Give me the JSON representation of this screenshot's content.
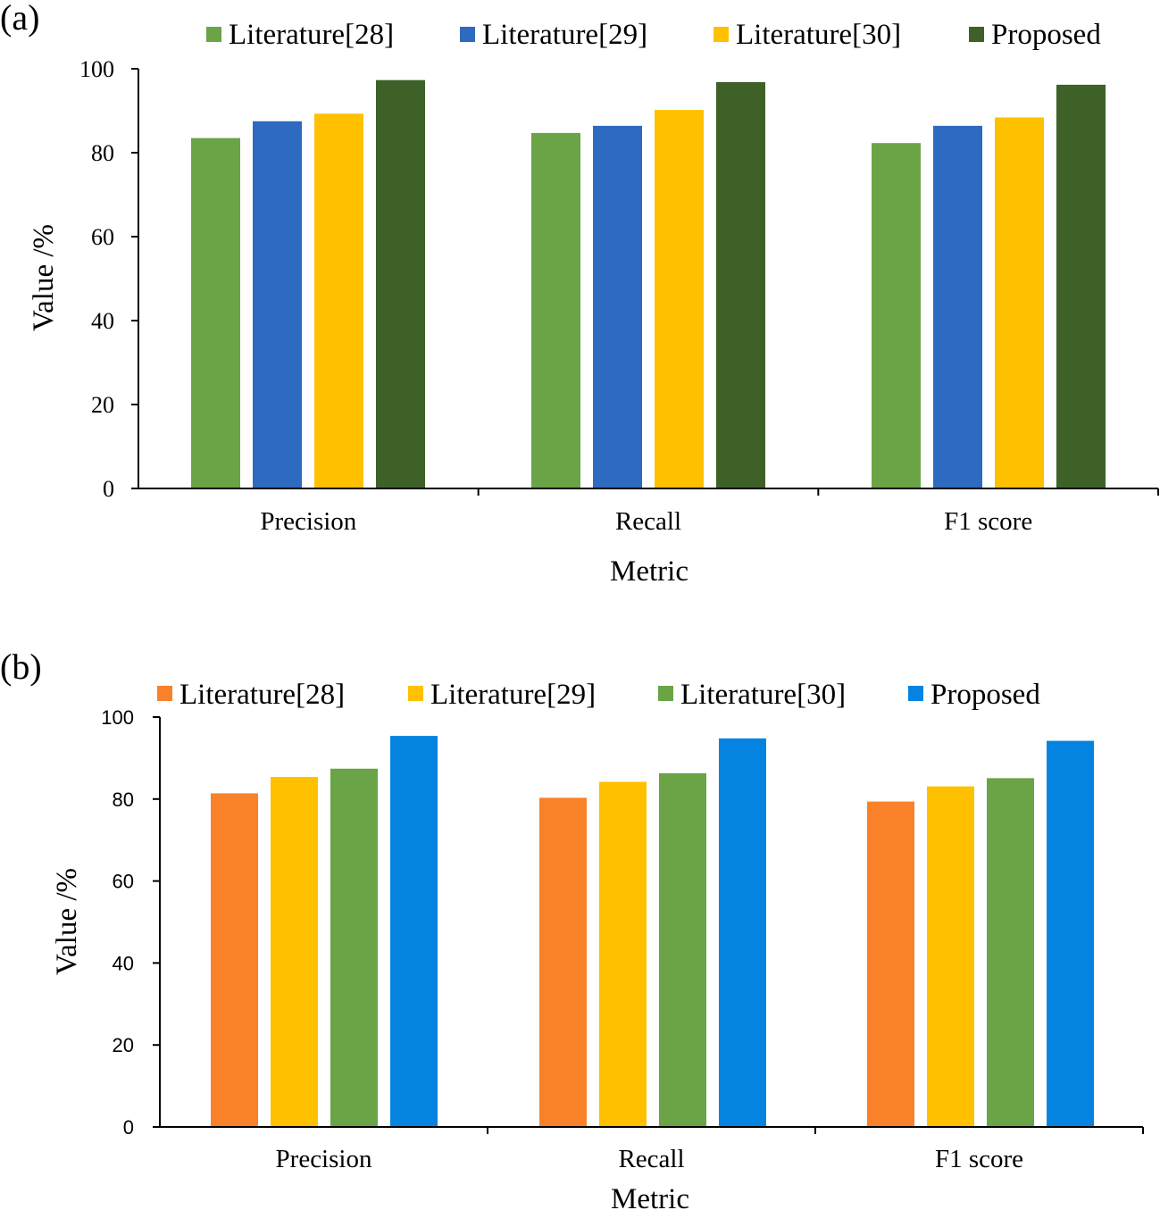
{
  "chart_data": [
    {
      "panel_label": "(a)",
      "type": "bar",
      "title": "",
      "xlabel": "Metric",
      "ylabel": "Value /%",
      "ylim": [
        0,
        100
      ],
      "yticks": [
        0,
        20,
        40,
        60,
        80,
        100
      ],
      "categories": [
        "Precision",
        "Recall",
        "F1 score"
      ],
      "series": [
        {
          "name": "Literature[28]",
          "color": "#6aa446",
          "values": [
            83.5,
            84.7,
            82.3
          ]
        },
        {
          "name": "Literature[29]",
          "color": "#2d6ac0",
          "values": [
            87.5,
            86.4,
            86.4
          ]
        },
        {
          "name": "Literature[30]",
          "color": "#ffc000",
          "values": [
            89.3,
            90.2,
            88.4
          ]
        },
        {
          "name": "Proposed",
          "color": "#3e6128",
          "values": [
            97.3,
            96.8,
            96.2
          ]
        }
      ],
      "legend": "top",
      "grid": false
    },
    {
      "panel_label": "(b)",
      "type": "bar",
      "title": "",
      "xlabel": "Metric",
      "ylabel": "Value /%",
      "ylim": [
        0,
        100
      ],
      "yticks": [
        0,
        20,
        40,
        60,
        80,
        100
      ],
      "categories": [
        "Precision",
        "Recall",
        "F1 score"
      ],
      "series": [
        {
          "name": "Literature[28]",
          "color": "#f8812a",
          "values": [
            81.4,
            80.3,
            79.4
          ]
        },
        {
          "name": "Literature[29]",
          "color": "#ffc000",
          "values": [
            85.4,
            84.2,
            83.1
          ]
        },
        {
          "name": "Literature[30]",
          "color": "#6aa446",
          "values": [
            87.4,
            86.3,
            85.1
          ]
        },
        {
          "name": "Proposed",
          "color": "#0484e0",
          "values": [
            95.4,
            94.8,
            94.2
          ]
        }
      ],
      "legend": "top",
      "grid": false
    }
  ]
}
